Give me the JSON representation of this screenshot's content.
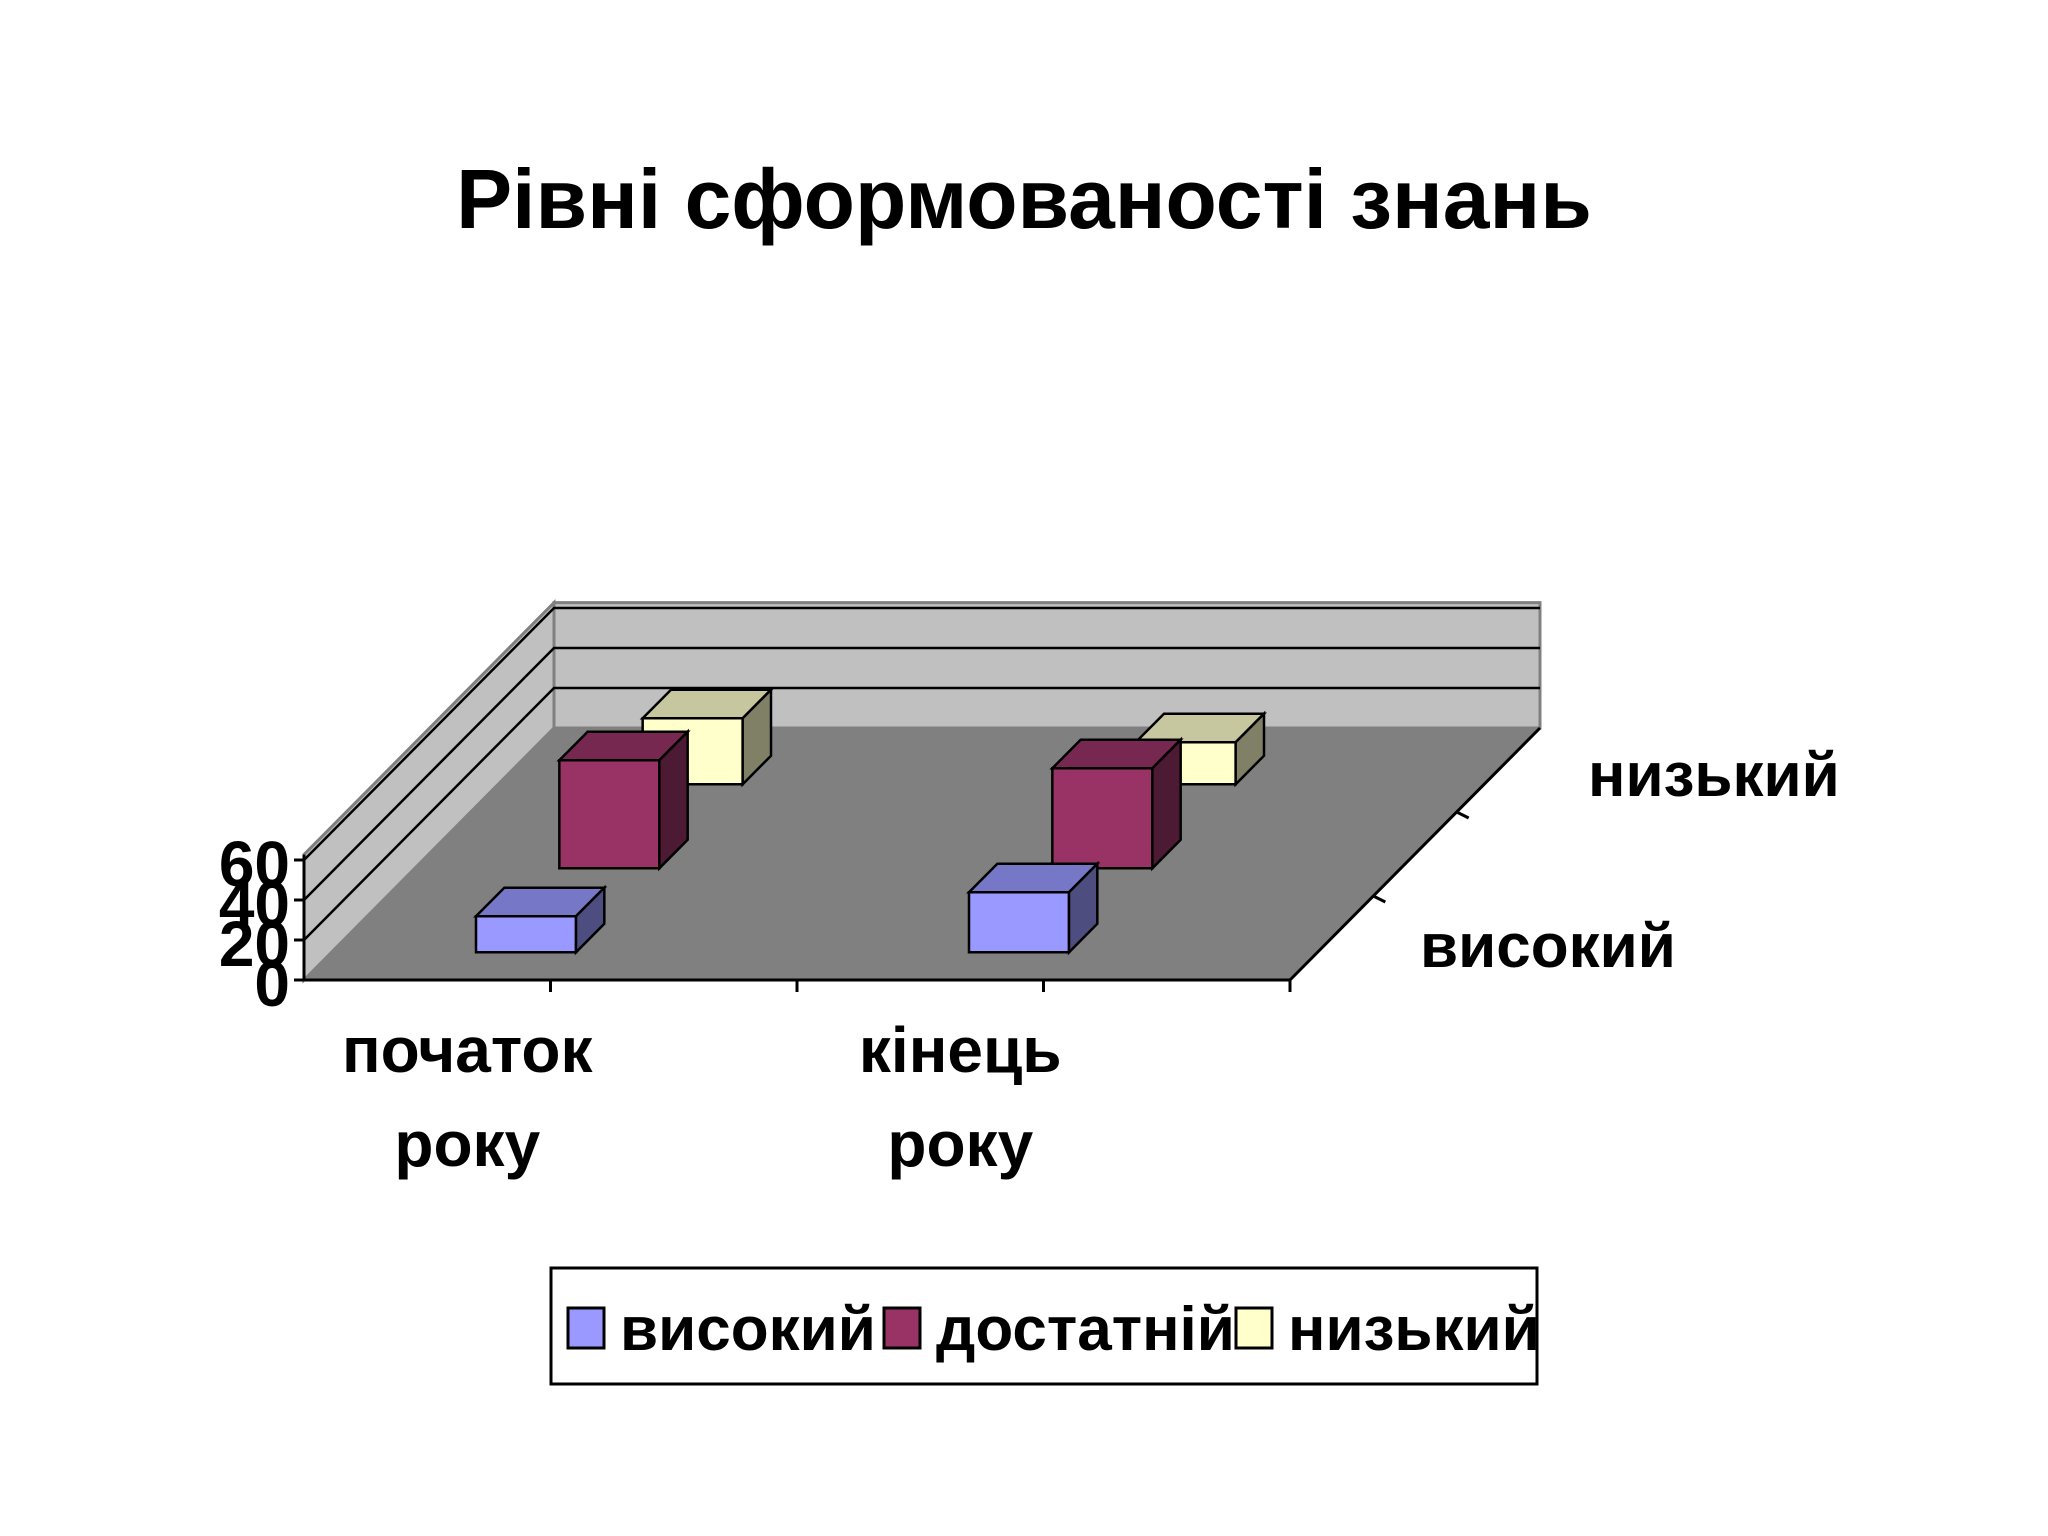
{
  "chart_data": {
    "type": "bar",
    "title": "Рівні сформованості знань",
    "categories": [
      "початок року",
      "кінець року"
    ],
    "category_lines": [
      [
        "початок",
        "року"
      ],
      [
        "кінець",
        "року"
      ]
    ],
    "depth_labels": [
      "високий",
      "низький"
    ],
    "series": [
      {
        "name": "високий",
        "values": [
          18,
          30
        ],
        "color": "#9999FF"
      },
      {
        "name": "достатній",
        "values": [
          54,
          50
        ],
        "color": "#993366"
      },
      {
        "name": "низький",
        "values": [
          33,
          21
        ],
        "color": "#FFFFCC"
      }
    ],
    "ylim": [
      0,
      60
    ],
    "yticks": [
      0,
      20,
      40,
      60
    ],
    "xlabel": "",
    "ylabel": "",
    "grid": true,
    "legend_position": "bottom",
    "wall_color": "#C0C0C0",
    "floor_color": "#808080"
  }
}
